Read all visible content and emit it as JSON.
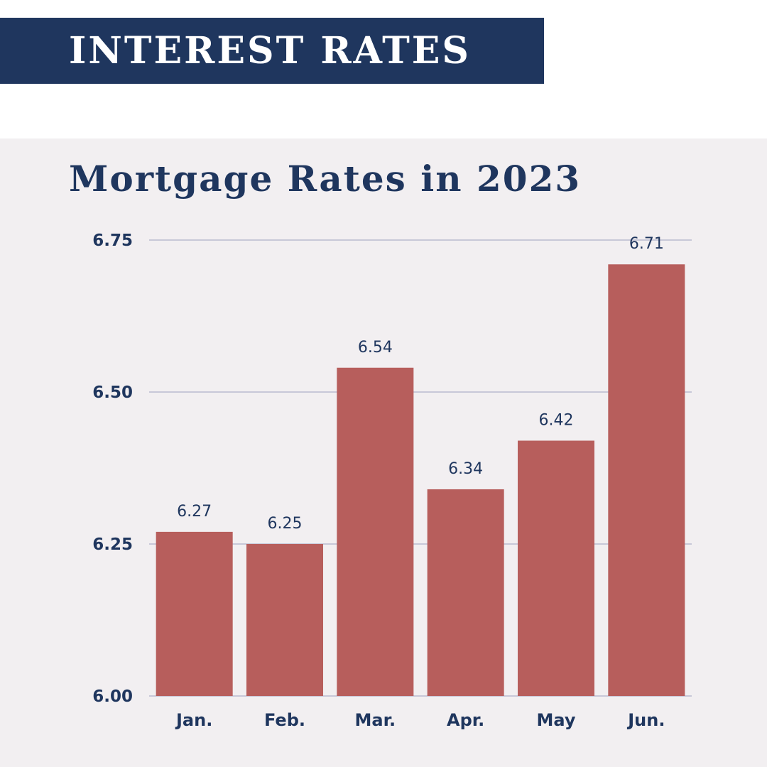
{
  "header": {
    "title": "INTEREST RATES"
  },
  "colors": {
    "navy": "#1f365e",
    "bar": "#b75e5c",
    "panel": "#f2eff1",
    "grid": "#b9bbd0",
    "white": "#ffffff"
  },
  "chart_data": {
    "type": "bar",
    "title": "Mortgage Rates in 2023",
    "xlabel": "",
    "ylabel": "",
    "categories": [
      "Jan.",
      "Feb.",
      "Mar.",
      "Apr.",
      "May",
      "Jun."
    ],
    "values": [
      6.27,
      6.25,
      6.54,
      6.34,
      6.42,
      6.71
    ],
    "value_labels": [
      "6.27",
      "6.25",
      "6.54",
      "6.34",
      "6.42",
      "6.71"
    ],
    "ylim": [
      6.0,
      6.75
    ],
    "yticks": [
      6.0,
      6.25,
      6.5,
      6.75
    ],
    "ytick_labels": [
      "6.00",
      "6.25",
      "6.50",
      "6.75"
    ],
    "grid": true,
    "legend": "none"
  }
}
